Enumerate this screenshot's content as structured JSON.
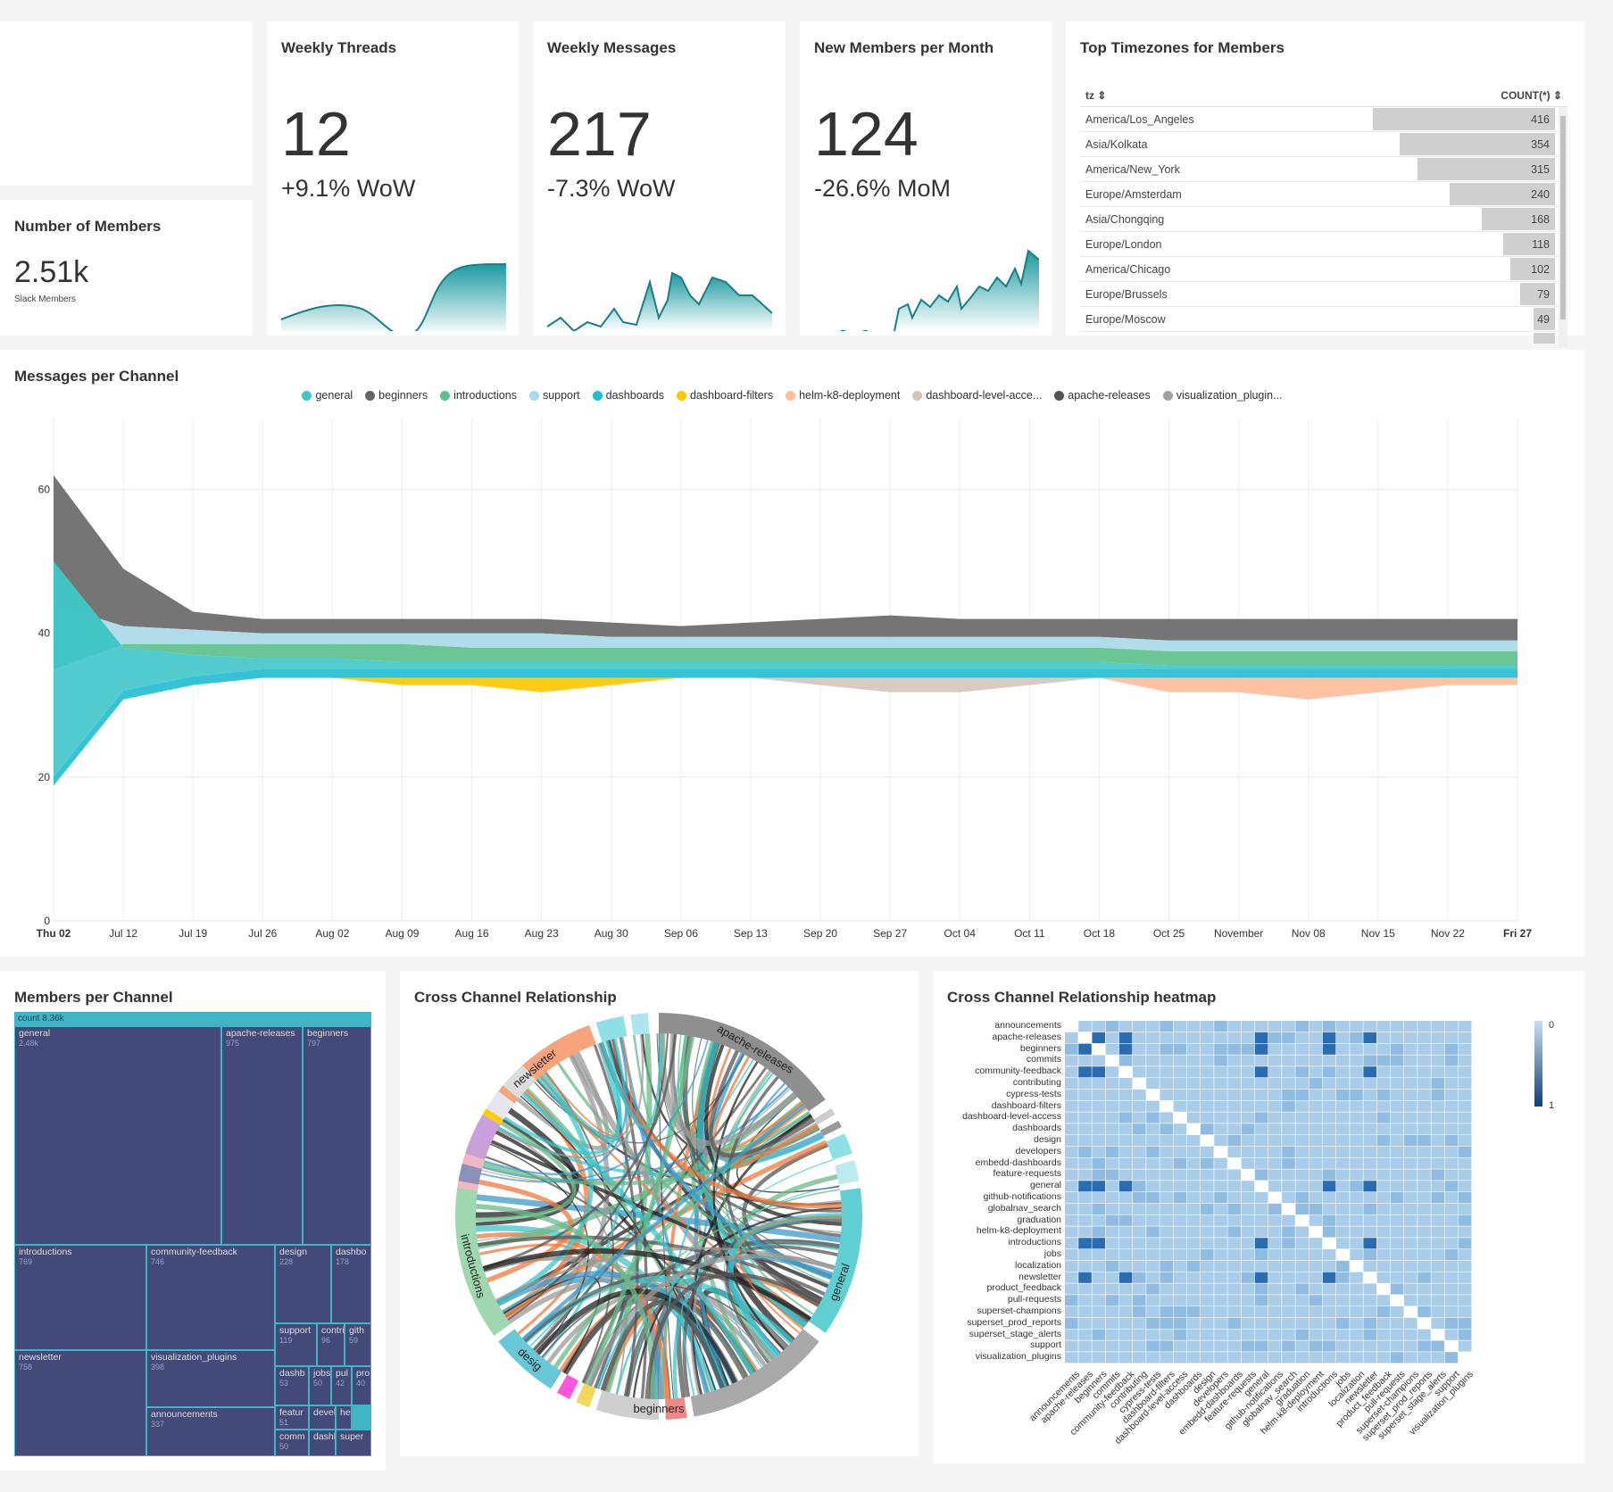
{
  "members": {
    "title": "Number of Members",
    "value": "2.51k",
    "subtitle": "Slack Members"
  },
  "weekly_threads": {
    "title": "Weekly Threads",
    "value": "12",
    "change": "+9.1% WoW"
  },
  "weekly_messages": {
    "title": "Weekly Messages",
    "value": "217",
    "change": "-7.3% WoW"
  },
  "new_members": {
    "title": "New Members per Month",
    "value": "124",
    "change": "-26.6% MoM"
  },
  "timezones": {
    "title": "Top Timezones for Members",
    "col_tz": "tz ⇕",
    "col_count": "COUNT(*) ⇕",
    "rows": [
      {
        "tz": "America/Los_Angeles",
        "count": "416",
        "frac": 1.0
      },
      {
        "tz": "Asia/Kolkata",
        "count": "354",
        "frac": 0.851
      },
      {
        "tz": "America/New_York",
        "count": "315",
        "frac": 0.757
      },
      {
        "tz": "Europe/Amsterdam",
        "count": "240",
        "frac": 0.577
      },
      {
        "tz": "Asia/Chongqing",
        "count": "168",
        "frac": 0.404
      },
      {
        "tz": "Europe/London",
        "count": "118",
        "frac": 0.284
      },
      {
        "tz": "America/Chicago",
        "count": "102",
        "frac": 0.245
      },
      {
        "tz": "Europe/Brussels",
        "count": "79",
        "frac": 0.19
      },
      {
        "tz": "Europe/Moscow",
        "count": "49",
        "frac": 0.118
      }
    ]
  },
  "messages_per_channel": {
    "title": "Messages per Channel",
    "legend": [
      {
        "name": "general",
        "color": "#3fc6c9"
      },
      {
        "name": "beginners",
        "color": "#666666"
      },
      {
        "name": "introductions",
        "color": "#5ac189"
      },
      {
        "name": "support",
        "color": "#a9d8e8"
      },
      {
        "name": "dashboards",
        "color": "#1fbdd0"
      },
      {
        "name": "dashboard-filters",
        "color": "#fcc700"
      },
      {
        "name": "helm-k8-deployment",
        "color": "#ffbd9a"
      },
      {
        "name": "dashboard-level-acce...",
        "color": "#d1c6bc"
      },
      {
        "name": "apache-releases",
        "color": "#545454"
      },
      {
        "name": "visualization_plugin...",
        "color": "#a1a1a1"
      }
    ],
    "y_ticks": [
      "0",
      "20",
      "40",
      "60"
    ],
    "x_ticks": [
      "Thu 02",
      "Jul 12",
      "Jul 19",
      "Jul 26",
      "Aug 02",
      "Aug 09",
      "Aug 16",
      "Aug 23",
      "Aug 30",
      "Sep 06",
      "Sep 13",
      "Sep 20",
      "Sep 27",
      "Oct 04",
      "Oct 11",
      "Oct 18",
      "Oct 25",
      "November",
      "Nov 08",
      "Nov 15",
      "Nov 22",
      "Fri 27"
    ]
  },
  "members_per_channel": {
    "title": "Members per Channel",
    "header": "count 8.36k",
    "cells": [
      {
        "name": "general",
        "value": "2.48k"
      },
      {
        "name": "apache-releases",
        "value": "975"
      },
      {
        "name": "beginners",
        "value": "797"
      },
      {
        "name": "introductions",
        "value": "769"
      },
      {
        "name": "community-feedback",
        "value": "746"
      },
      {
        "name": "design",
        "value": "228"
      },
      {
        "name": "dashbo",
        "value": "178"
      },
      {
        "name": "newsletter",
        "value": "758"
      },
      {
        "name": "visualization_plugins",
        "value": "398"
      },
      {
        "name": "announcements",
        "value": "337"
      },
      {
        "name": "support",
        "value": "119"
      },
      {
        "name": "contri",
        "value": "96"
      },
      {
        "name": "gith",
        "value": "59"
      },
      {
        "name": "dashb",
        "value": "53"
      },
      {
        "name": "jobs",
        "value": "50"
      },
      {
        "name": "pul",
        "value": "42"
      },
      {
        "name": "pro",
        "value": "40"
      },
      {
        "name": "featur",
        "value": "51"
      },
      {
        "name": "devel",
        "value": ""
      },
      {
        "name": "he",
        "value": ""
      },
      {
        "name": "comm",
        "value": "50"
      },
      {
        "name": "dashb",
        "value": ""
      },
      {
        "name": "super",
        "value": ""
      }
    ]
  },
  "chord": {
    "title": "Cross Channel Relationship",
    "labels": [
      "newsletter",
      "apache-releases",
      "general",
      "beginners",
      "desig",
      "introductions"
    ]
  },
  "heatmap": {
    "title": "Cross Channel Relationship heatmap",
    "channels": [
      "announcements",
      "apache-releases",
      "beginners",
      "commits",
      "community-feedback",
      "contributing",
      "cypress-tests",
      "dashboard-filters",
      "dashboard-level-access",
      "dashboards",
      "design",
      "developers",
      "embedd-dashboards",
      "feature-requests",
      "general",
      "github-notifications",
      "globalnav_search",
      "graduation",
      "helm-k8-deployment",
      "introductions",
      "jobs",
      "localization",
      "newsletter",
      "product_feedback",
      "pull-requests",
      "superset-champions",
      "superset_prod_reports",
      "superset_stage_alerts",
      "support",
      "visualization_plugins"
    ],
    "scale_min": "0",
    "scale_max": "1"
  },
  "chart_data": [
    {
      "type": "area",
      "title": "Messages per Channel",
      "x": [
        "Thu 02",
        "Jul 12",
        "Jul 19",
        "Jul 26",
        "Aug 02",
        "Aug 09",
        "Aug 16",
        "Aug 23",
        "Aug 30",
        "Sep 06",
        "Sep 13",
        "Sep 20",
        "Sep 27",
        "Oct 04",
        "Oct 11",
        "Oct 18",
        "Oct 25",
        "November",
        "Nov 08",
        "Nov 15",
        "Nov 22",
        "Fri 27"
      ],
      "ylim": [
        0,
        70
      ],
      "grid": true,
      "legend_position": "top",
      "series": [
        {
          "name": "general",
          "values": [
            50,
            38,
            37,
            36.5,
            36.5,
            36,
            36,
            36,
            36,
            36,
            36,
            36,
            36,
            36,
            36,
            36,
            35.5,
            35.5,
            35.5,
            35.5,
            35.5,
            35.5
          ]
        },
        {
          "name": "beginners",
          "values": [
            62,
            49,
            43,
            42,
            42,
            42,
            42,
            42,
            41.5,
            41,
            41.5,
            42,
            42.5,
            42,
            42,
            42,
            42,
            42,
            42,
            42,
            42,
            42
          ]
        },
        {
          "name": "introductions",
          "values": [
            35,
            38.5,
            38.5,
            38.5,
            38.5,
            38.5,
            38,
            38,
            38,
            38,
            38,
            38,
            38,
            38,
            38,
            38,
            37.5,
            37.5,
            37.5,
            37.5,
            37.5,
            37.5
          ]
        },
        {
          "name": "support",
          "values": [
            44,
            41,
            40.5,
            40,
            40,
            40,
            40,
            40,
            39.5,
            39.5,
            39.5,
            39.5,
            39.5,
            39.5,
            39.5,
            39.5,
            39,
            39,
            39,
            39,
            39,
            39
          ]
        },
        {
          "name": "dashboards",
          "values": [
            20,
            32,
            34,
            35,
            35,
            35,
            35,
            35,
            35,
            35,
            35,
            35,
            35,
            35,
            35,
            35,
            35,
            35,
            35,
            35,
            35,
            35
          ]
        },
        {
          "name": "dashboard-filters",
          "values": [
            0,
            0,
            0,
            0,
            0,
            1,
            1,
            2,
            1,
            0,
            0,
            0,
            0,
            0,
            0,
            0,
            0,
            0,
            0,
            0,
            0,
            0
          ]
        },
        {
          "name": "helm-k8-deployment",
          "values": [
            0,
            0,
            0,
            0,
            0,
            0,
            0,
            0,
            0,
            0,
            0,
            0,
            0,
            0,
            0,
            0,
            2,
            2,
            3,
            2,
            1,
            1
          ]
        },
        {
          "name": "dashboard-level-acce...",
          "values": [
            0,
            0,
            0,
            0,
            0,
            0,
            0,
            0,
            0,
            0,
            0,
            1,
            2,
            2,
            1,
            0,
            0,
            0,
            0,
            0,
            0,
            0
          ]
        }
      ]
    },
    {
      "type": "bar",
      "title": "Top Timezones for Members",
      "categories": [
        "America/Los_Angeles",
        "Asia/Kolkata",
        "America/New_York",
        "Europe/Amsterdam",
        "Asia/Chongqing",
        "Europe/London",
        "America/Chicago",
        "Europe/Brussels",
        "Europe/Moscow"
      ],
      "values": [
        416,
        354,
        315,
        240,
        168,
        118,
        102,
        79,
        49
      ]
    },
    {
      "type": "heatmap",
      "title": "Cross Channel Relationship heatmap",
      "scale": [
        0,
        1
      ]
    }
  ]
}
